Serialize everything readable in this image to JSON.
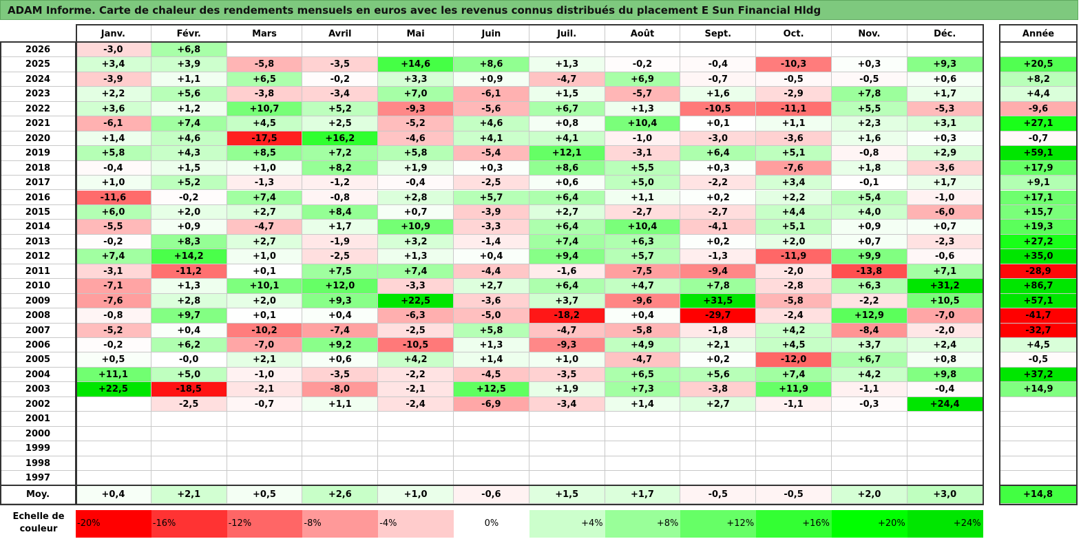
{
  "title": "ADAM Informe. Carte de chaleur des rendements mensuels en euros avec les revenus connus distribués du placement E Sun Financial Hldg",
  "chart_data": {
    "type": "heatmap",
    "title": "ADAM Informe. Carte de chaleur des rendements mensuels en euros avec les revenus connus distribués du placement E Sun Financial Hldg",
    "months": [
      "Janv.",
      "Févr.",
      "Mars",
      "Avril",
      "Mai",
      "Juin",
      "Juil.",
      "Août",
      "Sept.",
      "Oct.",
      "Nov.",
      "Déc."
    ],
    "year_header": "Année",
    "rows": [
      {
        "year": "2026",
        "m": [
          "-3,0",
          "+6,8",
          "",
          "",
          "",
          "",
          "",
          "",
          "",
          "",
          "",
          ""
        ],
        "annual": ""
      },
      {
        "year": "2025",
        "m": [
          "+3,4",
          "+3,9",
          "-5,8",
          "-3,5",
          "+14,6",
          "+8,6",
          "+1,3",
          "-0,2",
          "-0,4",
          "-10,3",
          "+0,3",
          "+9,3"
        ],
        "annual": "+20,5"
      },
      {
        "year": "2024",
        "m": [
          "-3,9",
          "+1,1",
          "+6,5",
          "-0,2",
          "+3,3",
          "+0,9",
          "-4,7",
          "+6,9",
          "-0,7",
          "-0,5",
          "-0,5",
          "+0,6"
        ],
        "annual": "+8,2"
      },
      {
        "year": "2023",
        "m": [
          "+2,2",
          "+5,6",
          "-3,8",
          "-3,4",
          "+7,0",
          "-6,1",
          "+1,5",
          "-5,7",
          "+1,6",
          "-2,9",
          "+7,8",
          "+1,7"
        ],
        "annual": "+4,4"
      },
      {
        "year": "2022",
        "m": [
          "+3,6",
          "+1,2",
          "+10,7",
          "+5,2",
          "-9,3",
          "-5,6",
          "+6,7",
          "+1,3",
          "-10,5",
          "-11,1",
          "+5,5",
          "-5,3"
        ],
        "annual": "-9,6"
      },
      {
        "year": "2021",
        "m": [
          "-6,1",
          "+7,4",
          "+4,5",
          "+2,5",
          "-5,2",
          "+4,6",
          "+0,8",
          "+10,4",
          "+0,1",
          "+1,1",
          "+2,3",
          "+3,1"
        ],
        "annual": "+27,1"
      },
      {
        "year": "2020",
        "m": [
          "+1,4",
          "+4,6",
          "-17,5",
          "+16,2",
          "-4,6",
          "+4,1",
          "+4,1",
          "-1,0",
          "-3,0",
          "-3,6",
          "+1,6",
          "+0,3"
        ],
        "annual": "-0,7"
      },
      {
        "year": "2019",
        "m": [
          "+5,8",
          "+4,3",
          "+8,5",
          "+7,2",
          "+5,8",
          "-5,4",
          "+12,1",
          "-3,1",
          "+6,4",
          "+5,1",
          "-0,8",
          "+2,9"
        ],
        "annual": "+59,1"
      },
      {
        "year": "2018",
        "m": [
          "-0,4",
          "+1,5",
          "+1,0",
          "+8,2",
          "+1,9",
          "+0,3",
          "+8,6",
          "+5,5",
          "+0,3",
          "-7,6",
          "+1,8",
          "-3,6"
        ],
        "annual": "+17,9"
      },
      {
        "year": "2017",
        "m": [
          "+1,0",
          "+5,2",
          "-1,3",
          "-1,2",
          "-0,4",
          "-2,5",
          "+0,6",
          "+5,0",
          "-2,2",
          "+3,4",
          "-0,1",
          "+1,7"
        ],
        "annual": "+9,1"
      },
      {
        "year": "2016",
        "m": [
          "-11,6",
          "-0,2",
          "+7,4",
          "-0,8",
          "+2,8",
          "+5,7",
          "+6,4",
          "+1,1",
          "+0,2",
          "+2,2",
          "+5,4",
          "-1,0"
        ],
        "annual": "+17,1"
      },
      {
        "year": "2015",
        "m": [
          "+6,0",
          "+2,0",
          "+2,7",
          "+8,4",
          "+0,7",
          "-3,9",
          "+2,7",
          "-2,7",
          "-2,7",
          "+4,4",
          "+4,0",
          "-6,0"
        ],
        "annual": "+15,7"
      },
      {
        "year": "2014",
        "m": [
          "-5,5",
          "+0,9",
          "-4,7",
          "+1,7",
          "+10,9",
          "-3,3",
          "+6,4",
          "+10,4",
          "-4,1",
          "+5,1",
          "+0,9",
          "+0,7"
        ],
        "annual": "+19,3"
      },
      {
        "year": "2013",
        "m": [
          "-0,2",
          "+8,3",
          "+2,7",
          "-1,9",
          "+3,2",
          "-1,4",
          "+7,4",
          "+6,3",
          "+0,2",
          "+2,0",
          "+0,7",
          "-2,3"
        ],
        "annual": "+27,2"
      },
      {
        "year": "2012",
        "m": [
          "+7,4",
          "+14,2",
          "+1,0",
          "-2,5",
          "+1,3",
          "+0,4",
          "+9,4",
          "+5,7",
          "-1,3",
          "-11,9",
          "+9,9",
          "-0,6"
        ],
        "annual": "+35,0"
      },
      {
        "year": "2011",
        "m": [
          "-3,1",
          "-11,2",
          "+0,1",
          "+7,5",
          "+7,4",
          "-4,4",
          "-1,6",
          "-7,5",
          "-9,4",
          "-2,0",
          "-13,8",
          "+7,1"
        ],
        "annual": "-28,9"
      },
      {
        "year": "2010",
        "m": [
          "-7,1",
          "+1,3",
          "+10,1",
          "+12,0",
          "-3,3",
          "+2,7",
          "+6,4",
          "+4,7",
          "+7,8",
          "-2,8",
          "+6,3",
          "+31,2"
        ],
        "annual": "+86,7"
      },
      {
        "year": "2009",
        "m": [
          "-7,6",
          "+2,8",
          "+2,0",
          "+9,3",
          "+22,5",
          "-3,6",
          "+3,7",
          "-9,6",
          "+31,5",
          "-5,8",
          "-2,2",
          "+10,5"
        ],
        "annual": "+57,1"
      },
      {
        "year": "2008",
        "m": [
          "-0,8",
          "+9,7",
          "+0,1",
          "+0,4",
          "-6,3",
          "-5,0",
          "-18,2",
          "+0,4",
          "-29,7",
          "-2,4",
          "+12,9",
          "-7,0"
        ],
        "annual": "-41,7"
      },
      {
        "year": "2007",
        "m": [
          "-5,2",
          "+0,4",
          "-10,2",
          "-7,4",
          "-2,5",
          "+5,8",
          "-4,7",
          "-5,8",
          "-1,8",
          "+4,2",
          "-8,4",
          "-2,0"
        ],
        "annual": "-32,7"
      },
      {
        "year": "2006",
        "m": [
          "-0,2",
          "+6,2",
          "-7,0",
          "+9,2",
          "-10,5",
          "+1,3",
          "-9,3",
          "+4,9",
          "+2,1",
          "+4,5",
          "+3,7",
          "+2,4"
        ],
        "annual": "+4,5"
      },
      {
        "year": "2005",
        "m": [
          "+0,5",
          "-0,0",
          "+2,1",
          "+0,6",
          "+4,2",
          "+1,4",
          "+1,0",
          "-4,7",
          "+0,2",
          "-12,0",
          "+6,7",
          "+0,8"
        ],
        "annual": "-0,5"
      },
      {
        "year": "2004",
        "m": [
          "+11,1",
          "+5,0",
          "-1,0",
          "-3,5",
          "-2,2",
          "-4,5",
          "-3,5",
          "+6,5",
          "+5,6",
          "+7,4",
          "+4,2",
          "+9,8"
        ],
        "annual": "+37,2"
      },
      {
        "year": "2003",
        "m": [
          "+22,5",
          "-18,5",
          "-2,1",
          "-8,0",
          "-2,1",
          "+12,5",
          "+1,9",
          "+7,3",
          "-3,8",
          "+11,9",
          "-1,1",
          "-0,4"
        ],
        "annual": "+14,9"
      },
      {
        "year": "2002",
        "m": [
          "",
          "-2,5",
          "-0,7",
          "+1,1",
          "-2,4",
          "-6,9",
          "-3,4",
          "+1,4",
          "+2,7",
          "-1,1",
          "-0,3",
          "+24,4"
        ],
        "annual": ""
      },
      {
        "year": "2001",
        "m": [
          "",
          "",
          "",
          "",
          "",
          "",
          "",
          "",
          "",
          "",
          "",
          ""
        ],
        "annual": ""
      },
      {
        "year": "2000",
        "m": [
          "",
          "",
          "",
          "",
          "",
          "",
          "",
          "",
          "",
          "",
          "",
          ""
        ],
        "annual": ""
      },
      {
        "year": "1999",
        "m": [
          "",
          "",
          "",
          "",
          "",
          "",
          "",
          "",
          "",
          "",
          "",
          ""
        ],
        "annual": ""
      },
      {
        "year": "1998",
        "m": [
          "",
          "",
          "",
          "",
          "",
          "",
          "",
          "",
          "",
          "",
          "",
          ""
        ],
        "annual": ""
      },
      {
        "year": "1997",
        "m": [
          "",
          "",
          "",
          "",
          "",
          "",
          "",
          "",
          "",
          "",
          "",
          ""
        ],
        "annual": ""
      }
    ],
    "average": {
      "label": "Moy.",
      "m": [
        "+0,4",
        "+2,1",
        "+0,5",
        "+2,6",
        "+1,0",
        "-0,6",
        "+1,5",
        "+1,7",
        "-0,5",
        "-0,5",
        "+2,0",
        "+3,0"
      ],
      "annual": "+14,8"
    },
    "color_scale": {
      "label": "Echelle de couleur",
      "steps": [
        {
          "label": "-20%",
          "color": "#ff0000"
        },
        {
          "label": "-16%",
          "color": "#ff3333"
        },
        {
          "label": "-12%",
          "color": "#ff6666"
        },
        {
          "label": "-8%",
          "color": "#ff9999"
        },
        {
          "label": "-4%",
          "color": "#ffcccc"
        },
        {
          "label": "0%",
          "color": "#ffffff"
        },
        {
          "label": "+4%",
          "color": "#ccffcc"
        },
        {
          "label": "+8%",
          "color": "#99ff99"
        },
        {
          "label": "+12%",
          "color": "#66ff66"
        },
        {
          "label": "+16%",
          "color": "#33ff33"
        },
        {
          "label": "+20%",
          "color": "#00ff00"
        },
        {
          "label": "+24%",
          "color": "#00e600"
        }
      ]
    }
  }
}
